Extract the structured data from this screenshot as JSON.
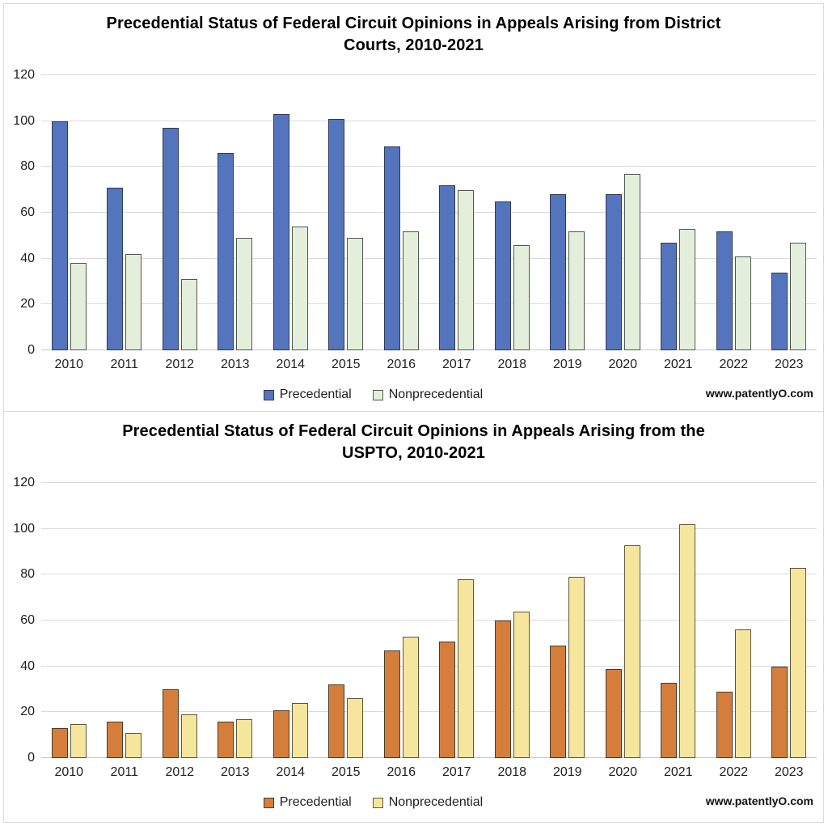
{
  "chart_data": [
    {
      "type": "bar",
      "title": "Precedential Status of Federal Circuit Opinions in Appeals Arising from District Courts, 2010-2021",
      "title_lines": [
        "Precedential Status of Federal Circuit Opinions in Appeals Arising from District",
        "Courts, 2010-2021"
      ],
      "categories": [
        "2010",
        "2011",
        "2012",
        "2013",
        "2014",
        "2015",
        "2016",
        "2017",
        "2018",
        "2019",
        "2020",
        "2021",
        "2022",
        "2023"
      ],
      "series": [
        {
          "name": "Precedential",
          "color": "#5574BE",
          "border_color": "#2F3B52",
          "values": [
            100,
            71,
            97,
            86,
            103,
            101,
            89,
            72,
            65,
            68,
            68,
            47,
            52,
            34
          ]
        },
        {
          "name": "Nonprecedential",
          "color": "#E4EFDB",
          "border_color": "#4F584F",
          "values": [
            38,
            42,
            31,
            49,
            54,
            49,
            52,
            70,
            46,
            52,
            77,
            53,
            41,
            47
          ]
        }
      ],
      "xlabel": "",
      "ylabel": "",
      "ylim": [
        0,
        120
      ],
      "yticks": [
        0,
        20,
        40,
        60,
        80,
        100,
        120
      ],
      "grid": true,
      "legend_position": "bottom",
      "watermark": "www.patentlyO.com"
    },
    {
      "type": "bar",
      "title": "Precedential Status of Federal Circuit Opinions in Appeals Arising from the USPTO, 2010-2021",
      "title_lines": [
        "Precedential Status of Federal Circuit Opinions in Appeals Arising from the",
        "USPTO, 2010-2021"
      ],
      "categories": [
        "2010",
        "2011",
        "2012",
        "2013",
        "2014",
        "2015",
        "2016",
        "2017",
        "2018",
        "2019",
        "2020",
        "2021",
        "2022",
        "2023"
      ],
      "series": [
        {
          "name": "Precedential",
          "color": "#D57E3C",
          "border_color": "#4A3B27",
          "values": [
            13,
            16,
            30,
            16,
            21,
            32,
            47,
            51,
            60,
            49,
            39,
            33,
            29,
            40
          ]
        },
        {
          "name": "Nonprecedential",
          "color": "#F6E59D",
          "border_color": "#5F5737",
          "values": [
            15,
            11,
            19,
            17,
            24,
            26,
            53,
            78,
            64,
            79,
            93,
            102,
            56,
            83
          ]
        }
      ],
      "xlabel": "",
      "ylabel": "",
      "ylim": [
        0,
        120
      ],
      "yticks": [
        0,
        20,
        40,
        60,
        80,
        100,
        120
      ],
      "grid": true,
      "legend_position": "bottom",
      "watermark": "www.patentlyO.com"
    }
  ]
}
